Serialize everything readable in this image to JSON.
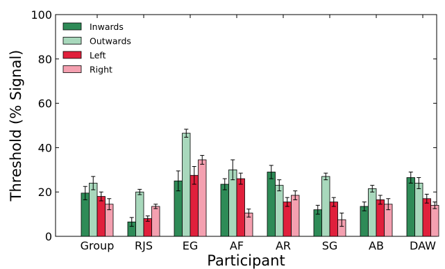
{
  "chart_data": {
    "type": "bar",
    "xlabel": "Participant",
    "ylabel": "Threshold (% Signal)",
    "ylim": [
      0,
      100
    ],
    "yticks": [
      0,
      20,
      40,
      60,
      80,
      100
    ],
    "grid": false,
    "legend_position": "top-left",
    "categories": [
      "Group",
      "RJS",
      "EG",
      "AF",
      "AR",
      "SG",
      "AB",
      "DAW"
    ],
    "series": [
      {
        "name": "Inwards",
        "color": "#2e8b57",
        "values": [
          19.5,
          6.5,
          25,
          23.5,
          29,
          12,
          13.5,
          26.5
        ],
        "errors": [
          3,
          2,
          4.5,
          2.5,
          3,
          2,
          2,
          2.5
        ]
      },
      {
        "name": "Outwards",
        "color": "#a8d8bc",
        "values": [
          24,
          20,
          46.5,
          30,
          23,
          27,
          21.5,
          24
        ],
        "errors": [
          3,
          1.2,
          1.8,
          4.5,
          2.5,
          1.5,
          1.5,
          2.5
        ]
      },
      {
        "name": "Left",
        "color": "#e0203c",
        "values": [
          18,
          8,
          27.5,
          26,
          15.5,
          15.5,
          16.5,
          17
        ],
        "errors": [
          2,
          1.2,
          4,
          2.5,
          2,
          2,
          2,
          2
        ]
      },
      {
        "name": "Right",
        "color": "#f4a0b0",
        "values": [
          14.5,
          13.5,
          34.5,
          10.5,
          18.5,
          7.5,
          14.5,
          14
        ],
        "errors": [
          2.5,
          1,
          2,
          1.8,
          2,
          3,
          2.5,
          1.5
        ]
      }
    ]
  }
}
